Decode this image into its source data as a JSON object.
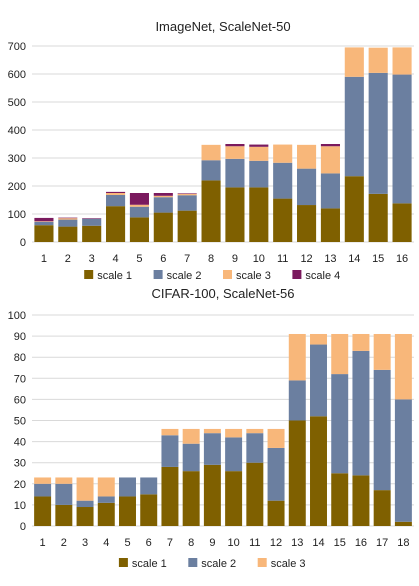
{
  "chart_data": [
    {
      "type": "bar",
      "stacked": true,
      "title": "ImageNet, ScaleNet-50",
      "xlabel": "",
      "ylabel": "",
      "categories": [
        "1",
        "2",
        "3",
        "4",
        "5",
        "6",
        "7",
        "8",
        "9",
        "10",
        "11",
        "12",
        "13",
        "14",
        "15",
        "16"
      ],
      "ylim": [
        0,
        700
      ],
      "yticks": [
        "0",
        "100",
        "200",
        "300",
        "400",
        "500",
        "600",
        "700"
      ],
      "grid": true,
      "legend_position": "bottom",
      "series": [
        {
          "name": "scale 1",
          "color": "#7f6000",
          "values": [
            60,
            55,
            58,
            128,
            88,
            105,
            112,
            220,
            195,
            195,
            155,
            132,
            120,
            235,
            172,
            138
          ]
        },
        {
          "name": "scale 2",
          "color": "#6b7fa0",
          "values": [
            12,
            25,
            25,
            40,
            38,
            55,
            55,
            72,
            102,
            95,
            128,
            130,
            125,
            355,
            432,
            460
          ]
        },
        {
          "name": "scale 3",
          "color": "#f8b77a",
          "values": [
            2,
            5,
            0,
            7,
            7,
            5,
            5,
            55,
            45,
            50,
            65,
            85,
            97,
            105,
            90,
            97
          ]
        },
        {
          "name": "scale 4",
          "color": "#7a1a5e",
          "values": [
            12,
            2,
            2,
            4,
            42,
            10,
            2,
            0,
            8,
            8,
            0,
            0,
            8,
            0,
            0,
            0
          ]
        }
      ]
    },
    {
      "type": "bar",
      "stacked": true,
      "title": "CIFAR-100, ScaleNet-56",
      "xlabel": "",
      "ylabel": "",
      "categories": [
        "1",
        "2",
        "3",
        "4",
        "5",
        "6",
        "7",
        "8",
        "9",
        "10",
        "11",
        "12",
        "13",
        "14",
        "15",
        "16",
        "17",
        "18"
      ],
      "ylim": [
        0,
        100
      ],
      "yticks": [
        "0",
        "10",
        "20",
        "30",
        "40",
        "50",
        "60",
        "70",
        "80",
        "90",
        "100"
      ],
      "grid": true,
      "legend_position": "bottom",
      "series": [
        {
          "name": "scale 1",
          "color": "#7f6000",
          "values": [
            14,
            10,
            9,
            11,
            14,
            15,
            28,
            26,
            29,
            26,
            30,
            12,
            50,
            52,
            25,
            24,
            17,
            2
          ]
        },
        {
          "name": "scale 2",
          "color": "#6b7fa0",
          "values": [
            6,
            10,
            3,
            3,
            9,
            8,
            15,
            13,
            15,
            16,
            14,
            25,
            19,
            34,
            47,
            59,
            57,
            58
          ]
        },
        {
          "name": "scale 3",
          "color": "#f8b77a",
          "values": [
            3,
            3,
            11,
            9,
            0,
            0,
            3,
            7,
            2,
            4,
            2,
            9,
            22,
            5,
            19,
            8,
            17,
            31
          ]
        }
      ]
    }
  ]
}
